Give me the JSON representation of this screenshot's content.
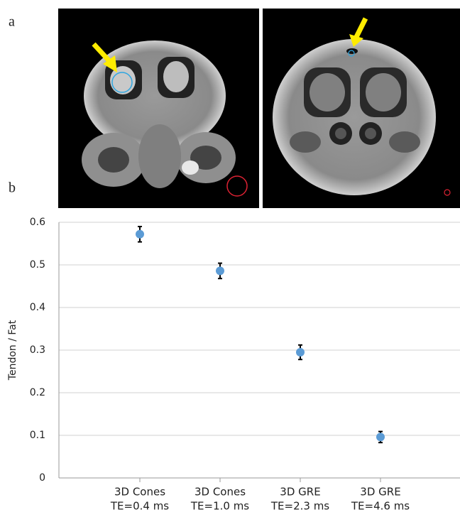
{
  "panel_labels": [
    "a",
    "b"
  ],
  "chart_data": {
    "type": "scatter",
    "y_label": "Tendon / Fat",
    "categories": [
      [
        "3D Cones",
        "TE=0.4 ms"
      ],
      [
        "3D Cones",
        "TE=1.0 ms"
      ],
      [
        "3D GRE",
        "TE=2.3 ms"
      ],
      [
        "3D GRE",
        "TE=4.6 ms"
      ]
    ],
    "values": [
      0.572,
      0.486,
      0.295,
      0.096
    ],
    "errors": [
      0.018,
      0.018,
      0.017,
      0.013
    ],
    "color": "#5b9bd5",
    "ylim": [
      0,
      0.6
    ],
    "yticks": [
      0,
      0.1,
      0.2,
      0.3,
      0.4,
      0.5,
      0.6
    ],
    "grid": true
  }
}
